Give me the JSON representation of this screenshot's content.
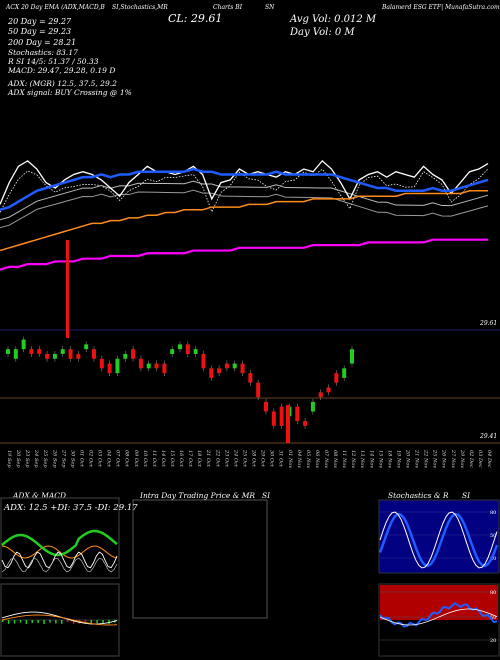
{
  "header": {
    "left": "ACX 20 Day EMA (ADX,MACD,B",
    "mid": "SI,Stochastics,MR",
    "chart_label": "Charts BI",
    "sn": "SN",
    "right": "Balamerd ESG ETF| MunafaSutra.com"
  },
  "stats": {
    "ema20": "20  Day = 29.27",
    "ema50": "50  Day = 29.23",
    "ema200": "200  Day = 28.21",
    "stochastics": "Stochastics: 83.17",
    "rsi": "R                SI 14/5: 51.37 / 50.33",
    "macd": "MACD: 29.47, 29.28, 0.19 D",
    "adx": "ADX:                              (MGR) 12.5,  37.5,  29.2",
    "adx_signal": "ADX  signal:                              BUY Crossing @ 1%"
  },
  "top": {
    "close_label": "CL: 29.61",
    "avg_vol": "Avg Vol: 0.012  M",
    "day_vol": "Day Vol: 0   M"
  },
  "price_labels": {
    "upper": "29.61",
    "lower": "29.41"
  },
  "chart_data": {
    "type": "line",
    "x": [
      "19 Sep",
      "20 Sep",
      "23 Sep",
      "24 Sep",
      "25 Sep",
      "26 Sep",
      "27 Sep",
      "30 Sep",
      "01 Oct",
      "02 Oct",
      "03 Oct",
      "04 Oct",
      "07 Oct",
      "08 Oct",
      "09 Oct",
      "10 Oct",
      "11 Oct",
      "14 Oct",
      "15 Oct",
      "16 Oct",
      "17 Oct",
      "18 Oct",
      "21 Oct",
      "22 Oct",
      "23 Oct",
      "24 Oct",
      "25 Oct",
      "28 Oct",
      "29 Oct",
      "30 Oct",
      "31 Oct",
      "01 Nov",
      "04 Nov",
      "05 Nov",
      "06 Nov",
      "07 Nov",
      "08 Nov",
      "11 Nov",
      "12 Nov",
      "13 Nov",
      "14 Nov",
      "15 Nov",
      "18 Nov",
      "19 Nov",
      "20 Nov",
      "21 Nov",
      "22 Nov",
      "25 Nov",
      "26 Nov",
      "27 Nov",
      "29 Nov",
      "02 Dec",
      "03 Dec",
      "04 Dec"
    ],
    "xlabels": [
      "19 Sep",
      "20 Sep",
      "23 Sep",
      "24 Sep",
      "25 Sep",
      "26 Sep",
      "27 Sep",
      "30 Sep",
      "01 Oct",
      "02 Oct",
      "03 Oct",
      "04 Oct",
      "07 Oct",
      "08 Oct",
      "09 Oct",
      "10 Oct",
      "11 Oct",
      "14 Oct",
      "15 Oct",
      "16 Oct",
      "17 Oct",
      "18 Oct",
      "21 Oct",
      "22 Oct",
      "23 Oct",
      "24 Oct",
      "25 Oct",
      "28 Oct",
      "29 Oct",
      "30 Oct",
      "31 Oct",
      "01 Nov",
      "04 Nov",
      "05 Nov",
      "06 Nov",
      "07 Nov",
      "08 Nov",
      "11 Nov",
      "12 Nov",
      "13 Nov",
      "14 Nov",
      "15 Nov",
      "18 Nov",
      "19 Nov",
      "20 Nov",
      "21 Nov",
      "22 Nov",
      "25 Nov",
      "26 Nov",
      "27 Nov",
      "29 Nov",
      "02 Dec",
      "03 Dec",
      "04 Dec"
    ],
    "series": [
      {
        "color": "#ffffff",
        "values": [
          29.44,
          29.52,
          29.58,
          29.6,
          29.57,
          29.52,
          29.5,
          29.53,
          29.55,
          29.56,
          29.55,
          29.53,
          29.5,
          29.47,
          29.52,
          29.55,
          29.58,
          29.56,
          29.56,
          29.55,
          29.56,
          29.58,
          29.55,
          29.46,
          29.52,
          29.53,
          29.57,
          29.55,
          29.56,
          29.55,
          29.54,
          29.56,
          29.55,
          29.57,
          29.56,
          29.6,
          29.57,
          29.52,
          29.46,
          29.53,
          29.55,
          29.56,
          29.54,
          29.56,
          29.55,
          29.54,
          29.58,
          29.55,
          29.53,
          29.48,
          29.52,
          29.56,
          29.57,
          29.59
        ]
      },
      {
        "color": "#1e5cff",
        "values": [
          29.42,
          29.43,
          29.45,
          29.47,
          29.49,
          29.5,
          29.51,
          29.52,
          29.53,
          29.54,
          29.54,
          29.55,
          29.54,
          29.55,
          29.55,
          29.56,
          29.56,
          29.56,
          29.56,
          29.56,
          29.56,
          29.57,
          29.56,
          29.56,
          29.55,
          29.55,
          29.55,
          29.55,
          29.55,
          29.55,
          29.56,
          29.55,
          29.55,
          29.55,
          29.55,
          29.55,
          29.55,
          29.54,
          29.53,
          29.52,
          29.51,
          29.5,
          29.5,
          29.49,
          29.49,
          29.49,
          29.49,
          29.5,
          29.49,
          29.49,
          29.5,
          29.51,
          29.52,
          29.53
        ]
      },
      {
        "color": "#ff8c1a",
        "values": [
          29.27,
          29.28,
          29.29,
          29.3,
          29.31,
          29.32,
          29.33,
          29.34,
          29.35,
          29.36,
          29.37,
          29.37,
          29.38,
          29.38,
          29.39,
          29.39,
          29.4,
          29.4,
          29.41,
          29.41,
          29.42,
          29.42,
          29.42,
          29.43,
          29.43,
          29.43,
          29.43,
          29.44,
          29.44,
          29.44,
          29.45,
          29.45,
          29.45,
          29.45,
          29.46,
          29.46,
          29.46,
          29.46,
          29.46,
          29.47,
          29.47,
          29.47,
          29.47,
          29.47,
          29.48,
          29.48,
          29.48,
          29.48,
          29.48,
          29.48,
          29.48,
          29.49,
          29.49,
          29.49
        ]
      },
      {
        "color": "#ff00ff",
        "values": [
          29.2,
          29.21,
          29.21,
          29.22,
          29.22,
          29.22,
          29.23,
          29.23,
          29.23,
          29.24,
          29.24,
          29.24,
          29.25,
          29.25,
          29.25,
          29.25,
          29.26,
          29.26,
          29.26,
          29.26,
          29.26,
          29.27,
          29.27,
          29.27,
          29.27,
          29.27,
          29.28,
          29.28,
          29.28,
          29.28,
          29.28,
          29.28,
          29.28,
          29.28,
          29.29,
          29.29,
          29.29,
          29.29,
          29.29,
          29.29,
          29.3,
          29.3,
          29.3,
          29.3,
          29.3,
          29.3,
          29.3,
          29.31,
          29.31,
          29.31,
          29.31,
          29.31,
          29.31,
          29.31
        ]
      }
    ],
    "candles": [
      {
        "o": 29.59,
        "c": 29.6,
        "up": true
      },
      {
        "o": 29.58,
        "c": 29.6,
        "up": true
      },
      {
        "o": 29.6,
        "c": 29.62,
        "up": true
      },
      {
        "o": 29.6,
        "c": 29.59,
        "up": false
      },
      {
        "o": 29.6,
        "c": 29.59,
        "up": false
      },
      {
        "o": 29.59,
        "c": 29.58,
        "up": false
      },
      {
        "o": 29.58,
        "c": 29.59,
        "up": true
      },
      {
        "o": 29.59,
        "c": 29.6,
        "up": true
      },
      {
        "o": 29.6,
        "c": 29.58,
        "up": false
      },
      {
        "o": 29.59,
        "c": 29.58,
        "up": false
      },
      {
        "o": 29.6,
        "c": 29.61,
        "up": true
      },
      {
        "o": 29.6,
        "c": 29.58,
        "up": false
      },
      {
        "o": 29.58,
        "c": 29.56,
        "up": false
      },
      {
        "o": 29.57,
        "c": 29.55,
        "up": false
      },
      {
        "o": 29.55,
        "c": 29.58,
        "up": true
      },
      {
        "o": 29.58,
        "c": 29.59,
        "up": true
      },
      {
        "o": 29.6,
        "c": 29.58,
        "up": false
      },
      {
        "o": 29.58,
        "c": 29.56,
        "up": false
      },
      {
        "o": 29.56,
        "c": 29.57,
        "up": true
      },
      {
        "o": 29.57,
        "c": 29.56,
        "up": false
      },
      {
        "o": 29.57,
        "c": 29.55,
        "up": false
      },
      {
        "o": 29.59,
        "c": 29.6,
        "up": true
      },
      {
        "o": 29.6,
        "c": 29.61,
        "up": true
      },
      {
        "o": 29.61,
        "c": 29.59,
        "up": false
      },
      {
        "o": 29.59,
        "c": 29.6,
        "up": true
      },
      {
        "o": 29.59,
        "c": 29.56,
        "up": false
      },
      {
        "o": 29.56,
        "c": 29.54,
        "up": false
      },
      {
        "o": 29.56,
        "c": 29.55,
        "up": false
      },
      {
        "o": 29.57,
        "c": 29.56,
        "up": false
      },
      {
        "o": 29.56,
        "c": 29.57,
        "up": true
      },
      {
        "o": 29.57,
        "c": 29.55,
        "up": false
      },
      {
        "o": 29.55,
        "c": 29.53,
        "up": false
      },
      {
        "o": 29.53,
        "c": 29.5,
        "up": false
      },
      {
        "o": 29.49,
        "c": 29.47,
        "up": false
      },
      {
        "o": 29.47,
        "c": 29.44,
        "up": false
      },
      {
        "o": 29.48,
        "c": 29.44,
        "up": false
      },
      {
        "o": 29.46,
        "c": 29.48,
        "up": true
      },
      {
        "o": 29.48,
        "c": 29.45,
        "up": false
      },
      {
        "o": 29.45,
        "c": 29.44,
        "up": false
      },
      {
        "o": 29.47,
        "c": 29.49,
        "up": true
      },
      {
        "o": 29.51,
        "c": 29.5,
        "up": false
      },
      {
        "o": 29.52,
        "c": 29.51,
        "up": false
      },
      {
        "o": 29.55,
        "c": 29.53,
        "up": false
      },
      {
        "o": 29.54,
        "c": 29.56,
        "up": true
      },
      {
        "o": 29.57,
        "c": 29.6,
        "up": true
      }
    ]
  },
  "panels": {
    "adx_macd": {
      "title": "ADX  & MACD",
      "value_line": "ADX: 12.5  +DI: 37.5  -DI: 29.17"
    },
    "intraday": {
      "title": "Intra  Day Trading Price  & MR",
      "si": "SI"
    },
    "stoch": {
      "title": "Stochastics  & R",
      "si": "SI",
      "labels": [
        "80",
        "50",
        "20"
      ],
      "rsi_labels": [
        "80",
        "50",
        "20"
      ]
    }
  }
}
